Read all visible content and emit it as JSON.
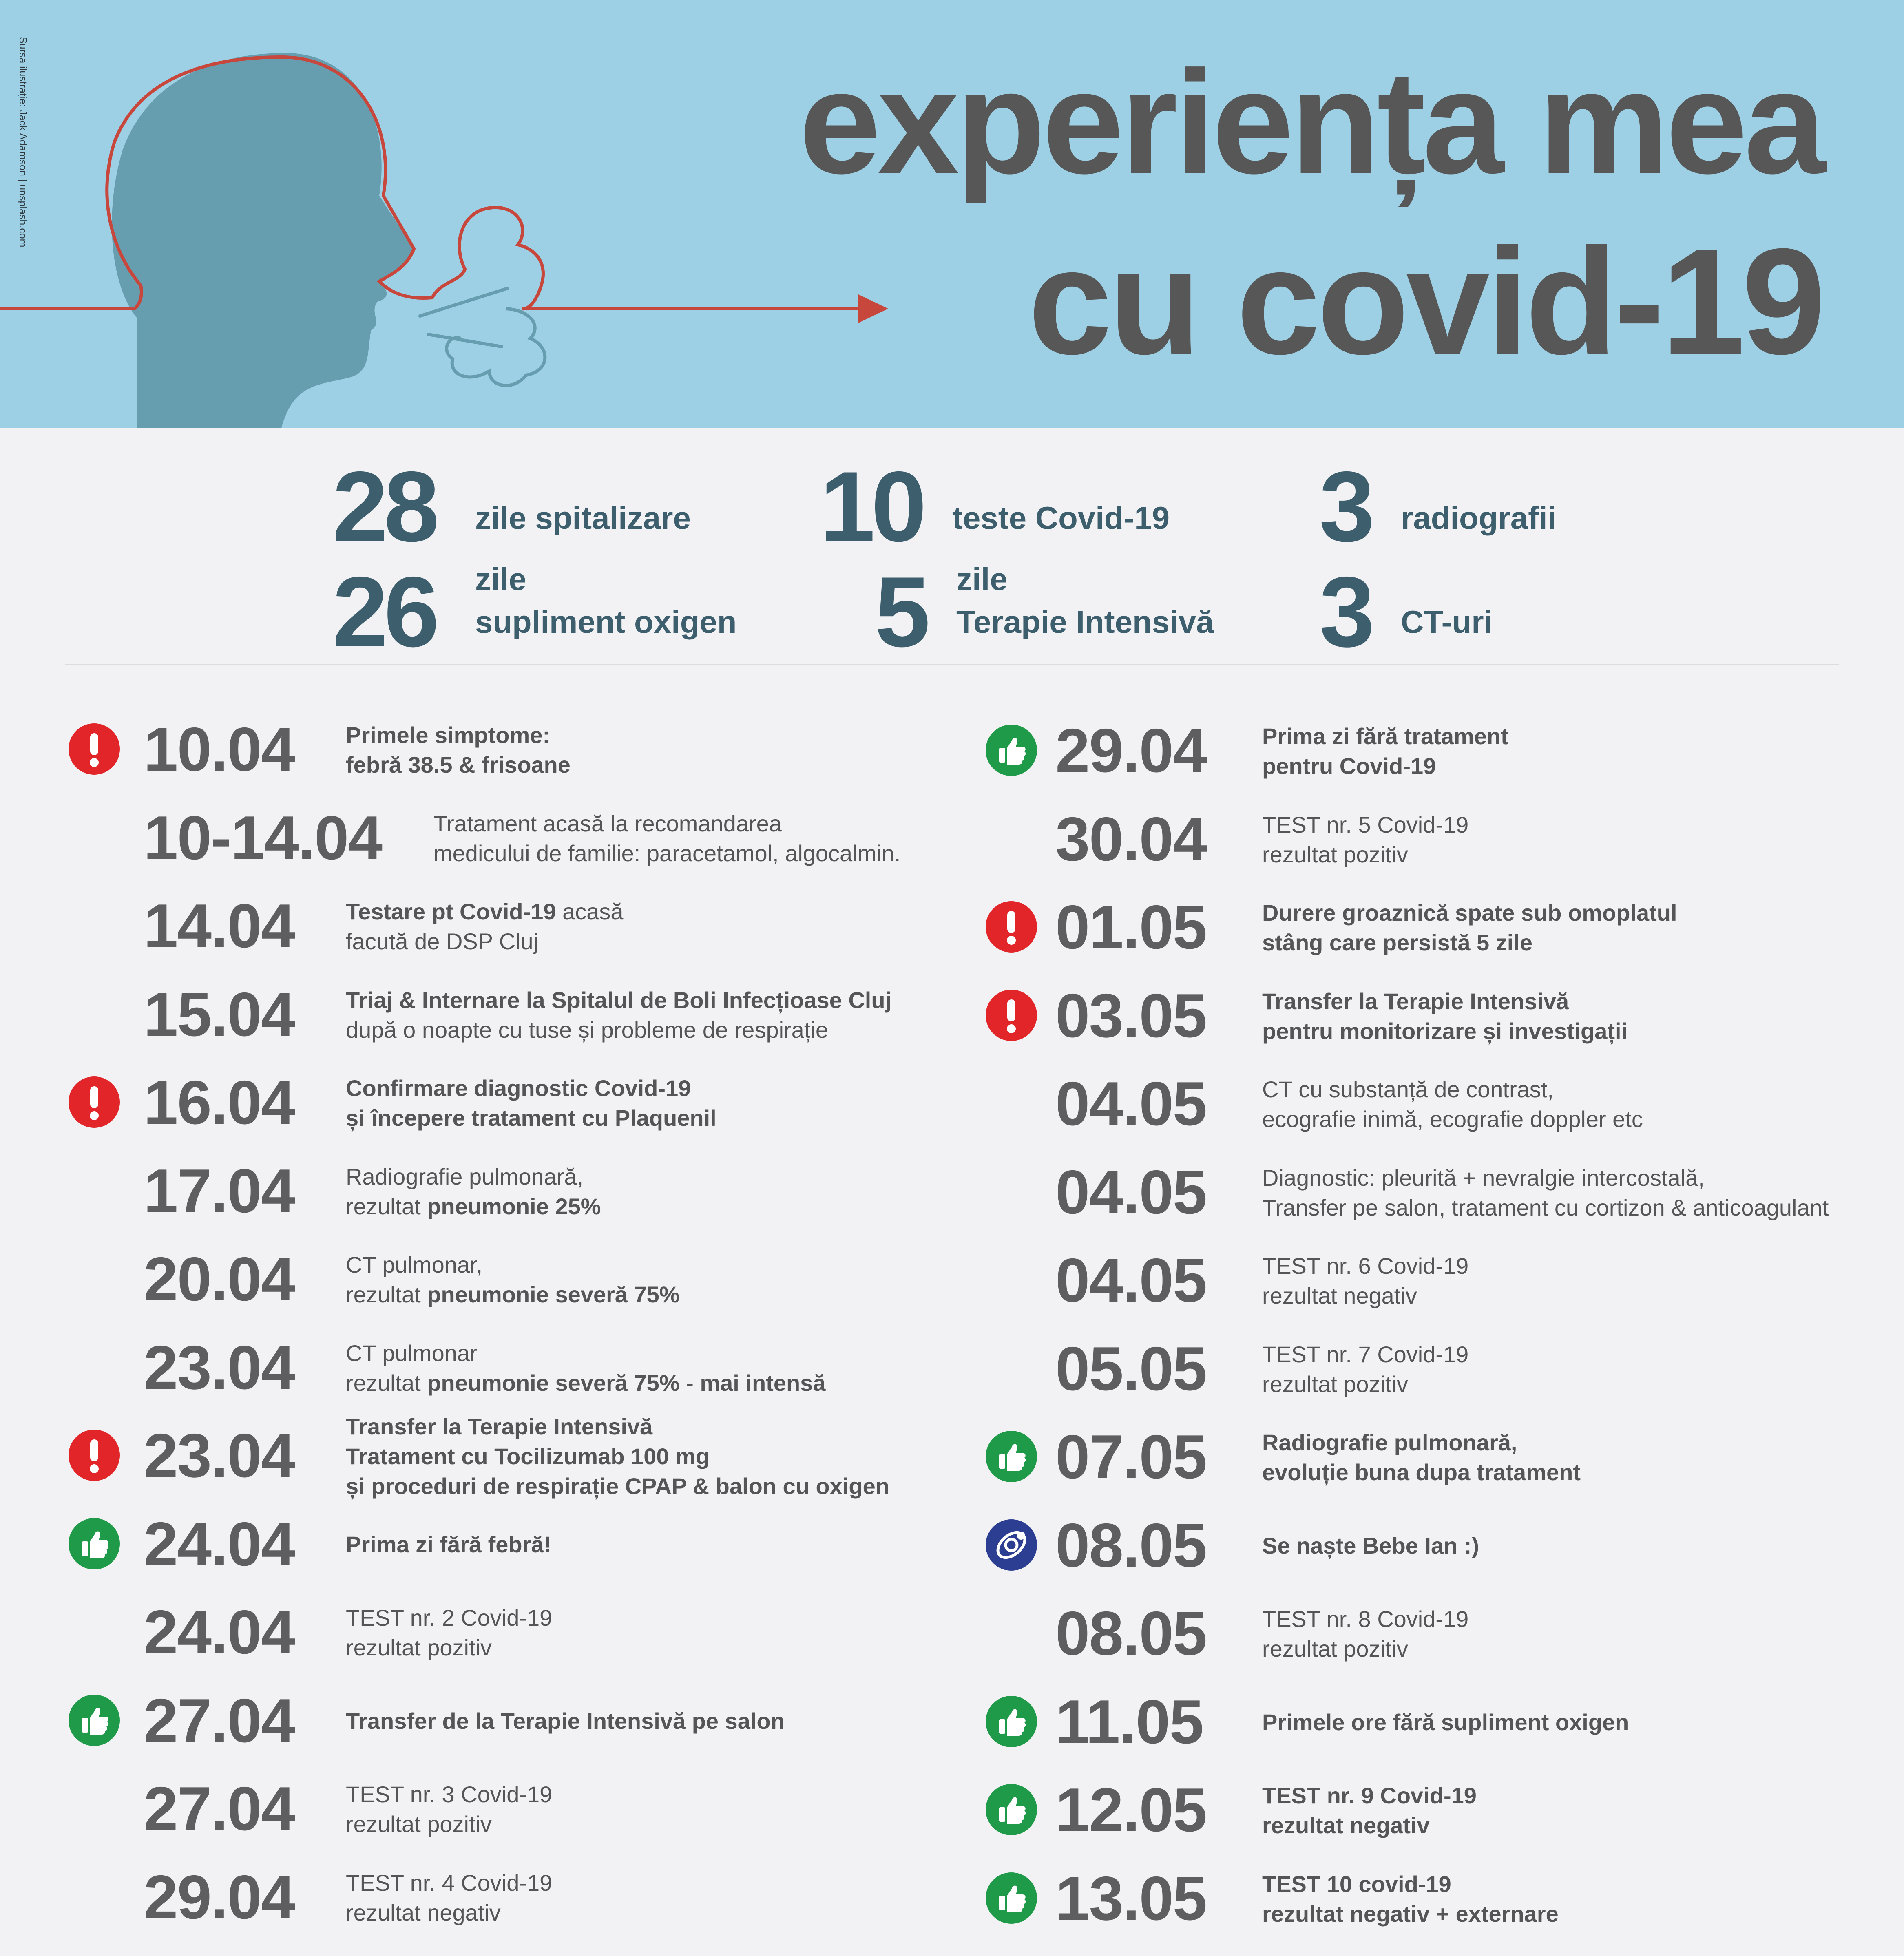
{
  "header": {
    "title_line1": "experiența mea",
    "title_line2": "cu covid-19",
    "credit": "Sursa ilustrație: Jack Adamson | unsplash.com",
    "background_color": "#9ed0e5",
    "title_color": "#575757",
    "head_color": "#679eaf",
    "outline_color": "#c8473d"
  },
  "stats": [
    {
      "number": "28",
      "label_line1": "",
      "label_line2": "zile spitalizare"
    },
    {
      "number": "10",
      "label_line1": "",
      "label_line2": "teste Covid-19"
    },
    {
      "number": "3",
      "label_line1": "",
      "label_line2": "radiografii"
    },
    {
      "number": "26",
      "label_line1": "zile",
      "label_line2": "supliment oxigen"
    },
    {
      "number": "5",
      "label_line1": "zile",
      "label_line2": "Terapie Intensivă"
    },
    {
      "number": "3",
      "label_line1": "",
      "label_line2": "CT-uri"
    }
  ],
  "timeline_left": [
    {
      "icon": "alert-icon",
      "date": "10.04",
      "segments": [
        [
          {
            "t": "Primele simptome:",
            "b": true
          }
        ],
        [
          {
            "t": "febră 38.5 & frisoane",
            "b": true
          }
        ]
      ]
    },
    {
      "icon": "",
      "date": "10-14.04",
      "segments": [
        [
          {
            "t": "Tratament acasă la recomandarea",
            "b": false
          }
        ],
        [
          {
            "t": "medicului de familie: paracetamol, algocalmin.",
            "b": false
          }
        ]
      ]
    },
    {
      "icon": "",
      "date": "14.04",
      "segments": [
        [
          {
            "t": "Testare pt Covid-19",
            "b": true
          },
          {
            "t": " acasă",
            "b": false
          }
        ],
        [
          {
            "t": "facută de DSP Cluj",
            "b": false
          }
        ]
      ]
    },
    {
      "icon": "",
      "date": "15.04",
      "segments": [
        [
          {
            "t": "Triaj & Internare la Spitalul de Boli Infecțioase Cluj",
            "b": true
          }
        ],
        [
          {
            "t": "după o noapte cu tuse și probleme de respirație",
            "b": false
          }
        ]
      ]
    },
    {
      "icon": "alert-icon",
      "date": "16.04",
      "segments": [
        [
          {
            "t": "Confirmare diagnostic Covid-19",
            "b": true
          }
        ],
        [
          {
            "t": "și începere tratament cu Plaquenil",
            "b": true
          }
        ]
      ]
    },
    {
      "icon": "",
      "date": "17.04",
      "segments": [
        [
          {
            "t": "Radiografie pulmonară,",
            "b": false
          }
        ],
        [
          {
            "t": "rezultat ",
            "b": false
          },
          {
            "t": "pneumonie 25%",
            "b": true
          }
        ]
      ]
    },
    {
      "icon": "",
      "date": "20.04",
      "segments": [
        [
          {
            "t": "CT pulmonar,",
            "b": false
          }
        ],
        [
          {
            "t": "rezultat ",
            "b": false
          },
          {
            "t": "pneumonie severă 75%",
            "b": true
          }
        ]
      ]
    },
    {
      "icon": "",
      "date": "23.04",
      "segments": [
        [
          {
            "t": "CT pulmonar",
            "b": false
          }
        ],
        [
          {
            "t": "rezultat ",
            "b": false
          },
          {
            "t": "pneumonie severă 75% - mai intensă",
            "b": true
          }
        ]
      ]
    },
    {
      "icon": "alert-icon",
      "date": "23.04",
      "segments": [
        [
          {
            "t": "Transfer la Terapie Intensivă",
            "b": true
          }
        ],
        [
          {
            "t": "Tratament cu Tocilizumab 100 mg",
            "b": true
          }
        ],
        [
          {
            "t": "și proceduri de respirație CPAP & balon cu oxigen",
            "b": true
          }
        ]
      ]
    },
    {
      "icon": "thumbs-up-icon",
      "date": "24.04",
      "segments": [
        [
          {
            "t": "Prima zi fără febră!",
            "b": true
          }
        ]
      ]
    },
    {
      "icon": "",
      "date": "24.04",
      "segments": [
        [
          {
            "t": "TEST nr. 2 Covid-19",
            "b": false
          }
        ],
        [
          {
            "t": "rezultat pozitiv",
            "b": false
          }
        ]
      ]
    },
    {
      "icon": "thumbs-up-icon",
      "date": "27.04",
      "segments": [
        [
          {
            "t": "Transfer de la Terapie Intensivă pe salon",
            "b": true
          }
        ]
      ]
    },
    {
      "icon": "",
      "date": "27.04",
      "segments": [
        [
          {
            "t": "TEST nr. 3 Covid-19",
            "b": false
          }
        ],
        [
          {
            "t": "rezultat pozitiv",
            "b": false
          }
        ]
      ]
    },
    {
      "icon": "",
      "date": "29.04",
      "segments": [
        [
          {
            "t": "TEST nr. 4 Covid-19",
            "b": false
          }
        ],
        [
          {
            "t": "rezultat negativ",
            "b": false
          }
        ]
      ]
    }
  ],
  "timeline_right": [
    {
      "icon": "thumbs-up-icon",
      "date": "29.04",
      "segments": [
        [
          {
            "t": "Prima zi fără tratament",
            "b": true
          }
        ],
        [
          {
            "t": "pentru Covid-19",
            "b": true
          }
        ]
      ]
    },
    {
      "icon": "",
      "date": "30.04",
      "segments": [
        [
          {
            "t": "TEST nr. 5 Covid-19",
            "b": false
          }
        ],
        [
          {
            "t": "rezultat pozitiv",
            "b": false
          }
        ]
      ]
    },
    {
      "icon": "alert-icon",
      "date": "01.05",
      "segments": [
        [
          {
            "t": "Durere groaznică spate sub omoplatul",
            "b": true
          }
        ],
        [
          {
            "t": "stâng care persistă 5 zile",
            "b": true
          }
        ]
      ]
    },
    {
      "icon": "alert-icon",
      "date": "03.05",
      "segments": [
        [
          {
            "t": "Transfer la Terapie Intensivă",
            "b": true
          }
        ],
        [
          {
            "t": "pentru monitorizare și investigații",
            "b": true
          }
        ]
      ]
    },
    {
      "icon": "",
      "date": "04.05",
      "segments": [
        [
          {
            "t": "CT cu substanță de contrast,",
            "b": false
          }
        ],
        [
          {
            "t": "ecografie inimă, ecografie doppler etc",
            "b": false
          }
        ]
      ]
    },
    {
      "icon": "",
      "date": "04.05",
      "segments": [
        [
          {
            "t": "Diagnostic: pleurită + nevralgie intercostală,",
            "b": false
          }
        ],
        [
          {
            "t": "Transfer pe salon, tratament cu cortizon & anticoagulant",
            "b": false
          }
        ]
      ]
    },
    {
      "icon": "",
      "date": "04.05",
      "segments": [
        [
          {
            "t": "TEST nr. 6 Covid-19",
            "b": false
          }
        ],
        [
          {
            "t": "rezultat negativ",
            "b": false
          }
        ]
      ]
    },
    {
      "icon": "",
      "date": "05.05",
      "segments": [
        [
          {
            "t": "TEST nr. 7 Covid-19",
            "b": false
          }
        ],
        [
          {
            "t": "rezultat pozitiv",
            "b": false
          }
        ]
      ]
    },
    {
      "icon": "thumbs-up-icon",
      "date": "07.05",
      "segments": [
        [
          {
            "t": "Radiografie pulmonară,",
            "b": true
          }
        ],
        [
          {
            "t": "evoluție buna dupa tratament",
            "b": true
          }
        ]
      ]
    },
    {
      "icon": "pacifier-icon",
      "date": "08.05",
      "segments": [
        [
          {
            "t": "Se naște Bebe Ian :)",
            "b": true
          }
        ]
      ]
    },
    {
      "icon": "",
      "date": "08.05",
      "segments": [
        [
          {
            "t": "TEST nr. 8 Covid-19",
            "b": false
          }
        ],
        [
          {
            "t": "rezultat pozitiv",
            "b": false
          }
        ]
      ]
    },
    {
      "icon": "thumbs-up-icon",
      "date": "11.05",
      "segments": [
        [
          {
            "t": "Primele ore fără supliment oxigen",
            "b": true
          }
        ]
      ]
    },
    {
      "icon": "thumbs-up-icon",
      "date": "12.05",
      "segments": [
        [
          {
            "t": "TEST nr. 9 Covid-19",
            "b": true
          }
        ],
        [
          {
            "t": "rezultat negativ",
            "b": true
          }
        ]
      ]
    },
    {
      "icon": "thumbs-up-icon",
      "date": "13.05",
      "segments": [
        [
          {
            "t": "TEST 10 covid-19",
            "b": true
          }
        ],
        [
          {
            "t": "rezultat negativ + externare",
            "b": true
          }
        ]
      ]
    }
  ],
  "icon_colors": {
    "alert-icon": "#e12529",
    "thumbs-up-icon": "#1f9a49",
    "pacifier-icon": "#2b3e91"
  }
}
